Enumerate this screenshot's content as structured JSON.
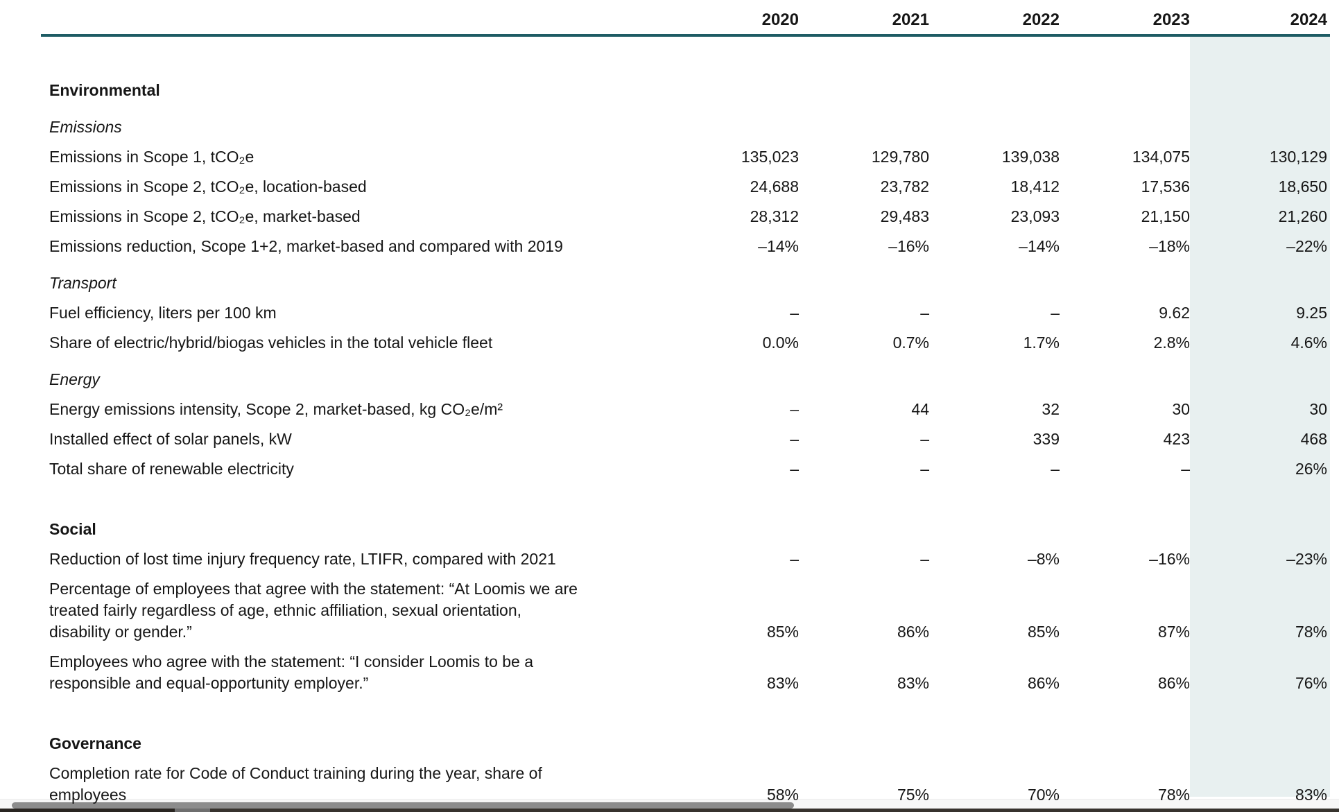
{
  "colors": {
    "rule_color": "#1e5c64",
    "band_color": "#e8f0f0",
    "text_color": "#161616",
    "scrollbar_thumb_color": "#8c8c8c",
    "scrollbar_track_color": "#f7f7f7"
  },
  "header": {
    "years": [
      "2020",
      "2021",
      "2022",
      "2023",
      "2024"
    ],
    "highlighted_year": "2024"
  },
  "rows": [
    {
      "type": "section",
      "label": "Environmental"
    },
    {
      "type": "subsection",
      "label": "Emissions"
    },
    {
      "type": "data",
      "label": "Emissions in Scope 1, tCO₂e",
      "values": [
        "135,023",
        "129,780",
        "139,038",
        "134,075",
        "130,129"
      ]
    },
    {
      "type": "data",
      "label": "Emissions in Scope 2, tCO₂e, location-based",
      "values": [
        "24,688",
        "23,782",
        "18,412",
        "17,536",
        "18,650"
      ]
    },
    {
      "type": "data",
      "label": "Emissions in Scope 2, tCO₂e, market-based",
      "values": [
        "28,312",
        "29,483",
        "23,093",
        "21,150",
        "21,260"
      ]
    },
    {
      "type": "data",
      "label": "Emissions reduction, Scope 1+2, market-based and compared with 2019",
      "values": [
        "–14%",
        "–16%",
        "–14%",
        "–18%",
        "–22%"
      ]
    },
    {
      "type": "subsection",
      "label": "Transport"
    },
    {
      "type": "data",
      "label": "Fuel efficiency, liters per 100 km",
      "values": [
        "–",
        "–",
        "–",
        "9.62",
        "9.25"
      ]
    },
    {
      "type": "data",
      "label": "Share of electric/hybrid/biogas vehicles in the total vehicle fleet",
      "values": [
        "0.0%",
        "0.7%",
        "1.7%",
        "2.8%",
        "4.6%"
      ]
    },
    {
      "type": "subsection",
      "label": "Energy"
    },
    {
      "type": "data",
      "label": "Energy emissions intensity, Scope 2, market-based, kg CO₂e/m²",
      "values": [
        "–",
        "44",
        "32",
        "30",
        "30"
      ]
    },
    {
      "type": "data",
      "label": "Installed effect of solar panels, kW",
      "values": [
        "–",
        "–",
        "339",
        "423",
        "468"
      ]
    },
    {
      "type": "data",
      "label": "Total share of renewable electricity",
      "values": [
        "–",
        "–",
        "–",
        "–",
        "26%"
      ]
    },
    {
      "type": "section",
      "label": "Social"
    },
    {
      "type": "data",
      "label": "Reduction of lost time injury frequency rate, LTIFR, compared with 2021",
      "values": [
        "–",
        "–",
        "–8%",
        "–16%",
        "–23%"
      ]
    },
    {
      "type": "data",
      "label": "Percentage of employees that agree with the statement: “At Loomis we are\ntreated fairly regardless of age, ethnic affiliation, sexual orientation,\ndisability or gender.”",
      "values": [
        "85%",
        "86%",
        "85%",
        "87%",
        "78%"
      ]
    },
    {
      "type": "data",
      "label": "Employees who agree with the statement: “I consider Loomis to be a\nresponsible and equal-opportunity employer.”",
      "values": [
        "83%",
        "83%",
        "86%",
        "86%",
        "76%"
      ]
    },
    {
      "type": "section",
      "label": "Governance"
    },
    {
      "type": "data",
      "label": "Completion rate for Code of Conduct training during the year, share of\nemployees",
      "values": [
        "58%",
        "75%",
        "70%",
        "78%",
        "83%"
      ]
    }
  ]
}
